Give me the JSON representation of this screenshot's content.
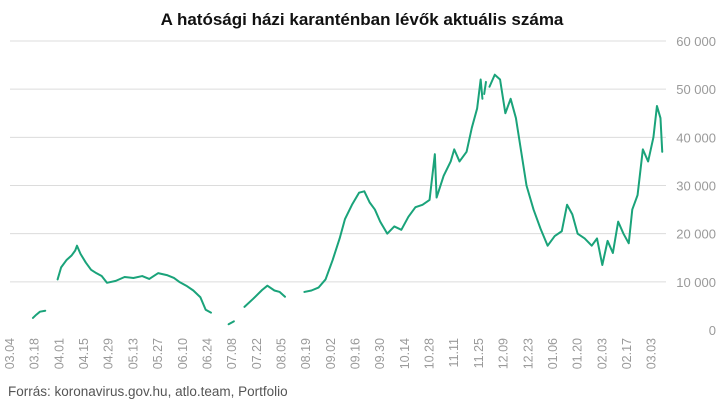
{
  "title": "A hatósági házi karanténban lévők aktuális száma",
  "source": "Forrás: koronavirus.gov.hu, atlo.team, Portfolio",
  "colors": {
    "line": "#1aa37a",
    "grid": "#dcdcdc",
    "tick": "#9a9a9a"
  },
  "chart_data": {
    "type": "line",
    "title": "A hatósági házi karanténban lévők aktuális száma",
    "xlabel": "",
    "ylabel": "",
    "ylim": [
      0,
      60000
    ],
    "yticks": [
      0,
      10000,
      20000,
      30000,
      40000,
      50000,
      60000
    ],
    "ytick_labels": [
      "0",
      "10 000",
      "20 000",
      "30 000",
      "40 000",
      "50 000",
      "60 000"
    ],
    "grid": true,
    "y_axis_side": "right",
    "x_range": [
      "2020-03-04",
      "2021-03-10"
    ],
    "xtick_labels": [
      "03.04",
      "03.18",
      "04.01",
      "04.15",
      "04.29",
      "05.13",
      "05.27",
      "06.10",
      "06.24",
      "07.08",
      "07.22",
      "08.05",
      "08.19",
      "09.02",
      "09.16",
      "09.30",
      "10.14",
      "10.28",
      "11.11",
      "11.25",
      "12.09",
      "12.23",
      "01.06",
      "01.20",
      "02.03",
      "02.17",
      "03.03"
    ],
    "series": [
      {
        "segments": [
          [
            [
              "2020-03-17",
              2500
            ],
            [
              "2020-03-19",
              3200
            ],
            [
              "2020-03-21",
              3800
            ],
            [
              "2020-03-24",
              4000
            ]
          ],
          [
            [
              "2020-03-31",
              10500
            ],
            [
              "2020-04-02",
              13000
            ],
            [
              "2020-04-05",
              14500
            ],
            [
              "2020-04-08",
              15500
            ],
            [
              "2020-04-10",
              16500
            ],
            [
              "2020-04-11",
              17500
            ],
            [
              "2020-04-13",
              15800
            ],
            [
              "2020-04-16",
              14000
            ],
            [
              "2020-04-19",
              12500
            ],
            [
              "2020-04-22",
              11800
            ],
            [
              "2020-04-25",
              11200
            ],
            [
              "2020-04-28",
              9800
            ],
            [
              "2020-05-03",
              10200
            ],
            [
              "2020-05-08",
              11000
            ],
            [
              "2020-05-13",
              10800
            ],
            [
              "2020-05-18",
              11200
            ],
            [
              "2020-05-22",
              10600
            ],
            [
              "2020-05-27",
              11800
            ],
            [
              "2020-06-01",
              11400
            ],
            [
              "2020-06-05",
              10800
            ],
            [
              "2020-06-08",
              10000
            ],
            [
              "2020-06-12",
              9200
            ],
            [
              "2020-06-16",
              8200
            ],
            [
              "2020-06-20",
              6800
            ],
            [
              "2020-06-23",
              4200
            ],
            [
              "2020-06-26",
              3600
            ]
          ],
          [
            [
              "2020-07-06",
              1200
            ],
            [
              "2020-07-09",
              1800
            ]
          ],
          [
            [
              "2020-07-15",
              4800
            ],
            [
              "2020-07-20",
              6500
            ],
            [
              "2020-07-25",
              8300
            ],
            [
              "2020-07-28",
              9200
            ],
            [
              "2020-08-01",
              8200
            ],
            [
              "2020-08-04",
              7900
            ],
            [
              "2020-08-07",
              6900
            ]
          ],
          [
            [
              "2020-08-18",
              7900
            ],
            [
              "2020-08-22",
              8200
            ],
            [
              "2020-08-26",
              8800
            ],
            [
              "2020-08-30",
              10500
            ],
            [
              "2020-09-03",
              14500
            ],
            [
              "2020-09-07",
              19000
            ],
            [
              "2020-09-10",
              23000
            ],
            [
              "2020-09-14",
              26000
            ],
            [
              "2020-09-18",
              28500
            ],
            [
              "2020-09-21",
              28800
            ],
            [
              "2020-09-24",
              26500
            ],
            [
              "2020-09-27",
              25000
            ],
            [
              "2020-09-30",
              22500
            ],
            [
              "2020-10-04",
              20000
            ],
            [
              "2020-10-08",
              21500
            ],
            [
              "2020-10-12",
              20800
            ],
            [
              "2020-10-16",
              23500
            ],
            [
              "2020-10-20",
              25500
            ],
            [
              "2020-10-24",
              26000
            ],
            [
              "2020-10-28",
              27000
            ],
            [
              "2020-10-31",
              36500
            ],
            [
              "2020-11-01",
              27500
            ],
            [
              "2020-11-05",
              32000
            ],
            [
              "2020-11-09",
              35000
            ],
            [
              "2020-11-11",
              37500
            ],
            [
              "2020-11-14",
              35000
            ],
            [
              "2020-11-18",
              37000
            ],
            [
              "2020-11-21",
              42000
            ],
            [
              "2020-11-24",
              46000
            ],
            [
              "2020-11-26",
              52000
            ],
            [
              "2020-11-27",
              48000
            ]
          ],
          [
            [
              "2020-11-28",
              49000
            ],
            [
              "2020-11-29",
              51500
            ]
          ],
          [
            [
              "2020-12-01",
              50500
            ],
            [
              "2020-12-04",
              53000
            ],
            [
              "2020-12-07",
              52000
            ],
            [
              "2020-12-10",
              45000
            ],
            [
              "2020-12-13",
              48000
            ],
            [
              "2020-12-16",
              44000
            ],
            [
              "2020-12-19",
              37000
            ],
            [
              "2020-12-22",
              30000
            ],
            [
              "2020-12-26",
              25000
            ],
            [
              "2020-12-30",
              21000
            ],
            [
              "2021-01-03",
              17500
            ],
            [
              "2021-01-07",
              19500
            ],
            [
              "2021-01-11",
              20500
            ],
            [
              "2021-01-14",
              26000
            ],
            [
              "2021-01-17",
              24000
            ],
            [
              "2021-01-20",
              20000
            ],
            [
              "2021-01-24",
              19000
            ],
            [
              "2021-01-28",
              17500
            ],
            [
              "2021-01-31",
              19000
            ],
            [
              "2021-02-03",
              13500
            ],
            [
              "2021-02-06",
              18500
            ],
            [
              "2021-02-09",
              16000
            ],
            [
              "2021-02-12",
              22500
            ],
            [
              "2021-02-15",
              20000
            ],
            [
              "2021-02-18",
              18000
            ],
            [
              "2021-02-20",
              25000
            ],
            [
              "2021-02-23",
              28000
            ],
            [
              "2021-02-26",
              37500
            ],
            [
              "2021-03-01",
              35000
            ],
            [
              "2021-03-04",
              40000
            ],
            [
              "2021-03-06",
              46500
            ],
            [
              "2021-03-08",
              44000
            ],
            [
              "2021-03-09",
              37000
            ]
          ]
        ]
      }
    ]
  }
}
